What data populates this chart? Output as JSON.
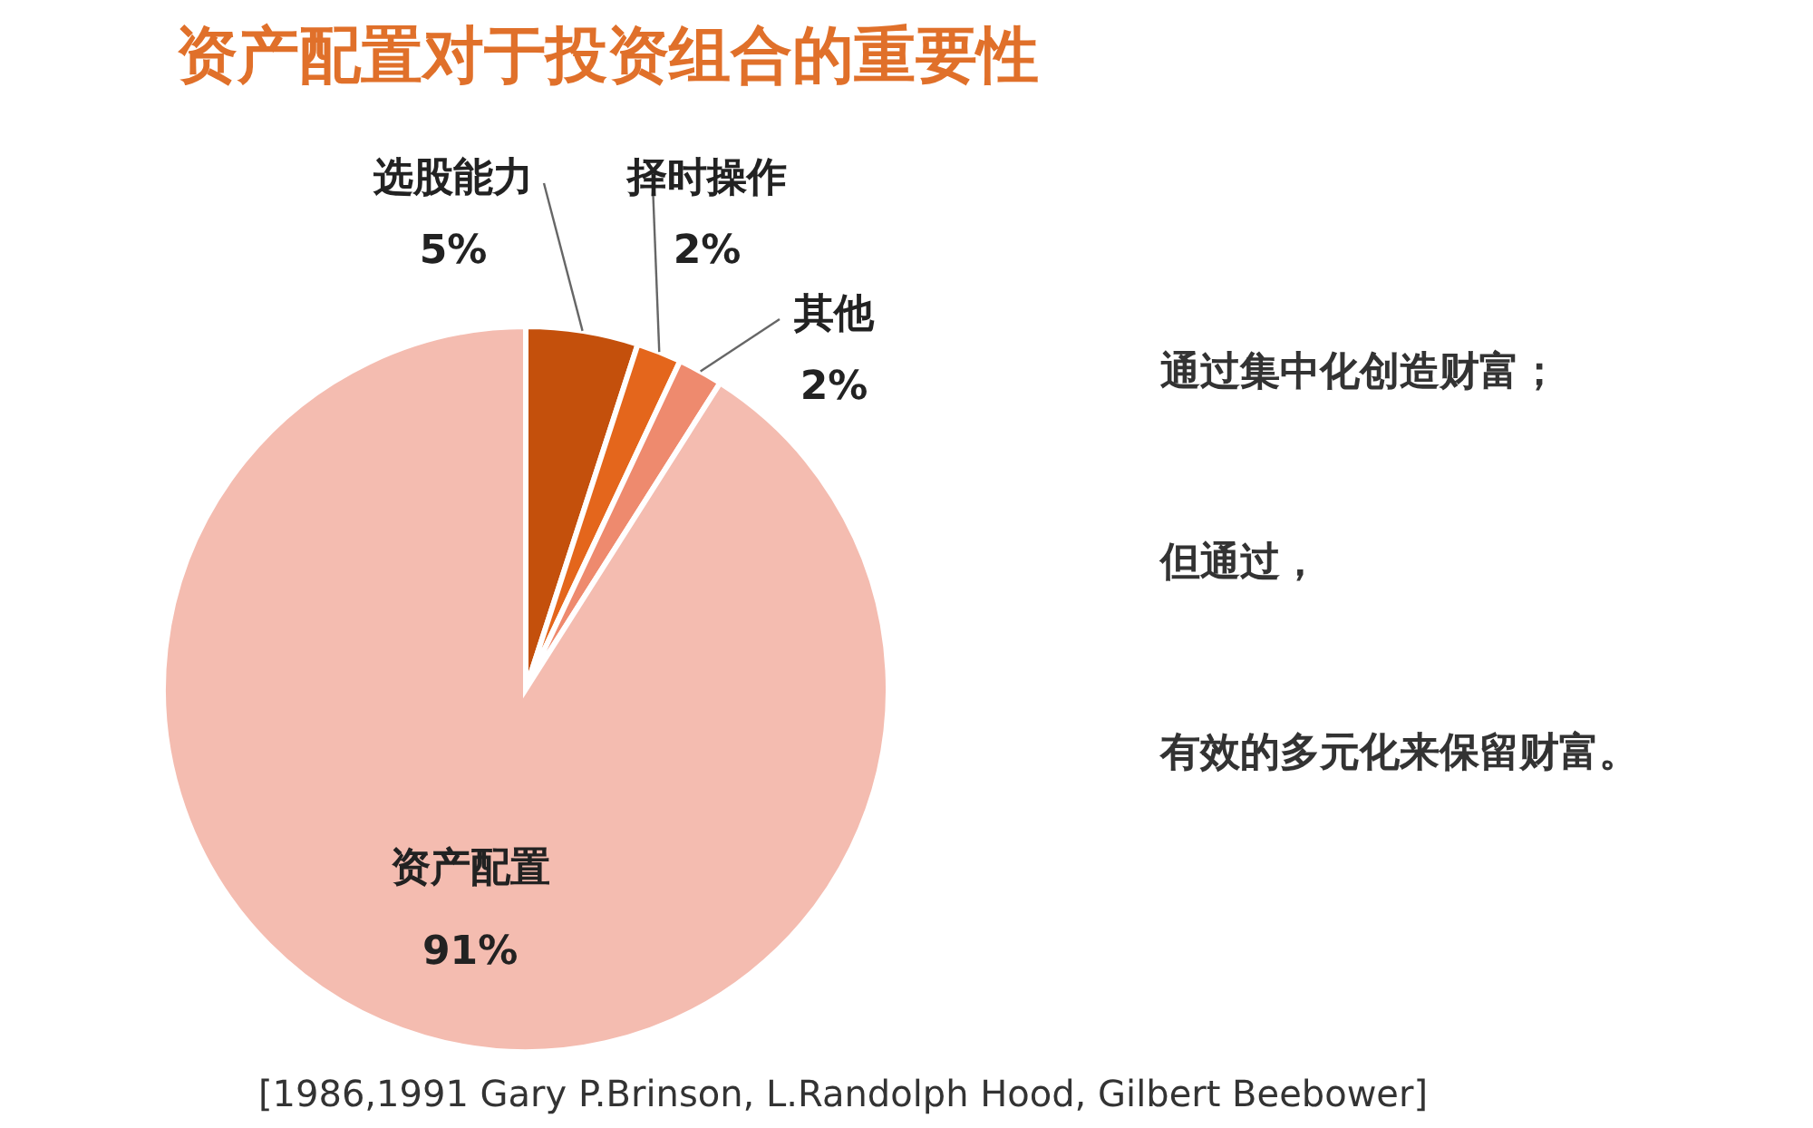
{
  "chart_data": {
    "type": "pie",
    "title": "资产配置对于投资组合的重要性",
    "categories": [
      "选股能力",
      "择时操作",
      "其他",
      "资产配置"
    ],
    "values": [
      5,
      2,
      2,
      91
    ],
    "value_labels": [
      "5%",
      "2%",
      "2%",
      "91%"
    ],
    "colors": [
      "#c4500c",
      "#e4661c",
      "#ee8a6e",
      "#f4bcb0"
    ],
    "annotations": [
      "通过集中化创造财富；",
      "但通过，",
      "有效的多元化来保留财富。",
      "[1986,1991 Gary P.Brinson, L.Randolph Hood, Gilbert Beebower]"
    ]
  }
}
